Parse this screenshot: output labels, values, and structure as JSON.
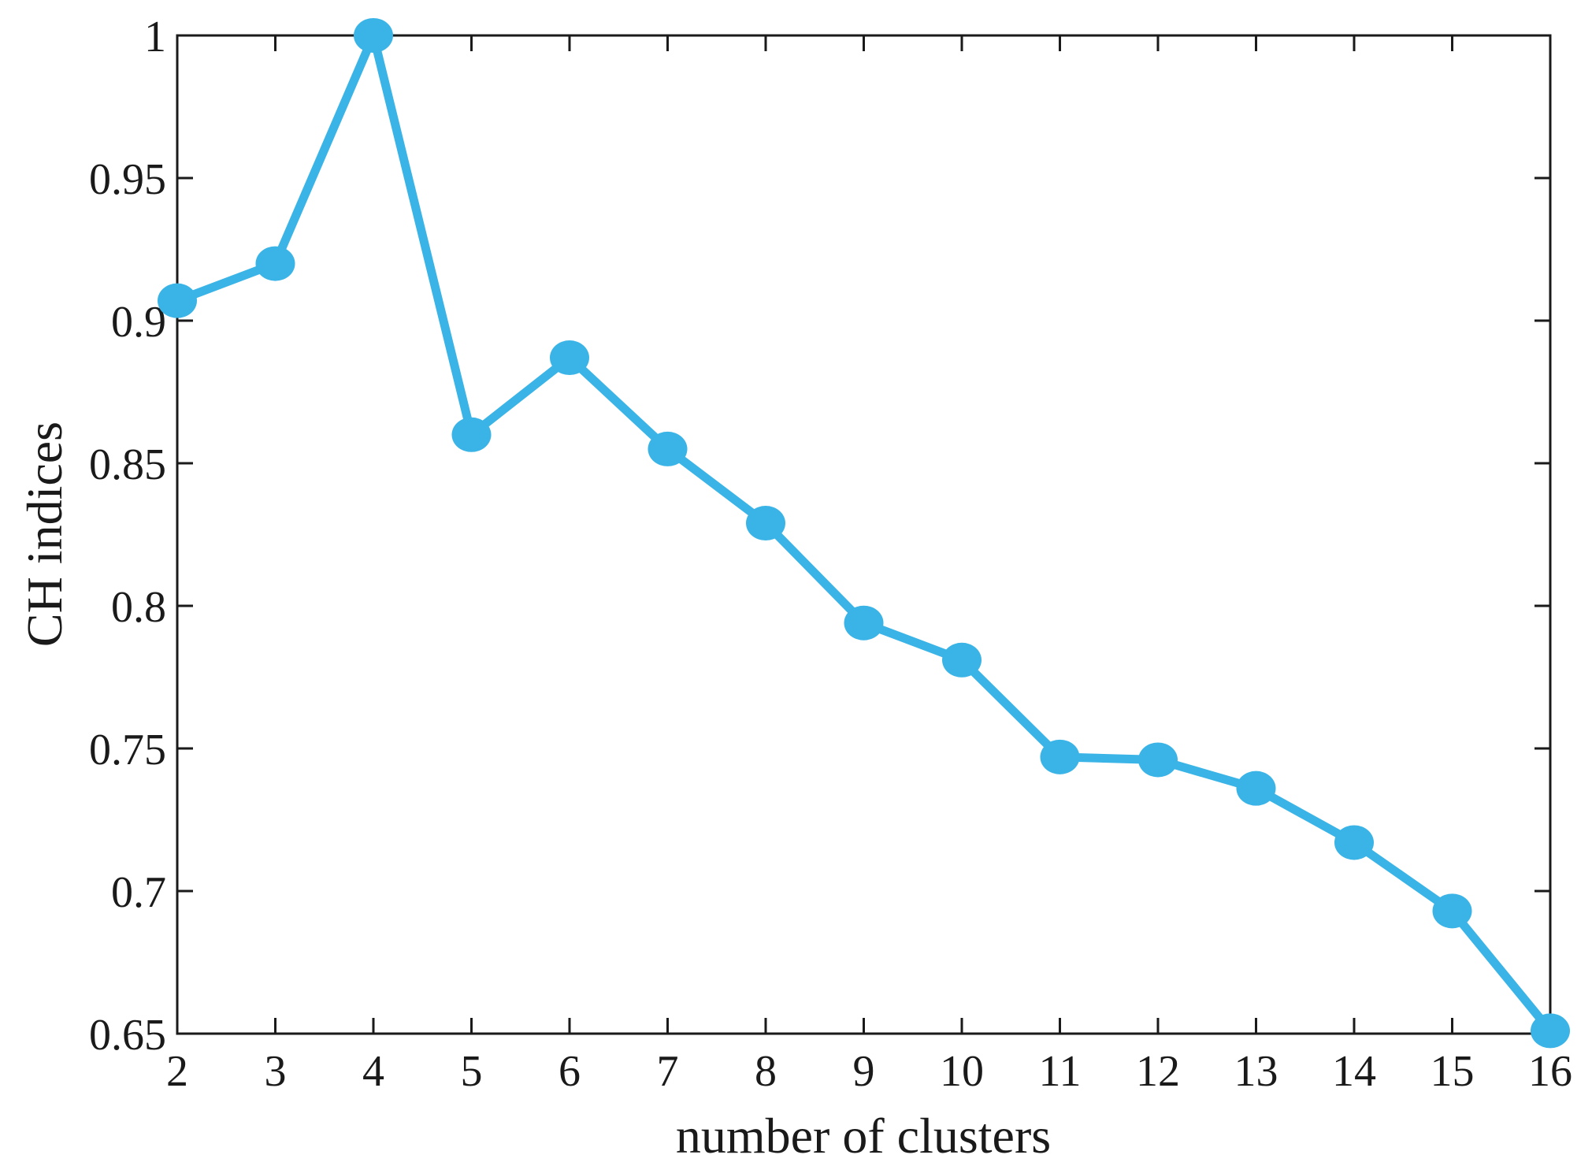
{
  "chart_data": {
    "type": "line",
    "title": "",
    "xlabel": "number of clusters",
    "ylabel": "CH indices",
    "x": [
      2,
      3,
      4,
      5,
      6,
      7,
      8,
      9,
      10,
      11,
      12,
      13,
      14,
      15,
      16
    ],
    "series": [
      {
        "values": [
          0.907,
          0.92,
          1.0,
          0.86,
          0.887,
          0.855,
          0.829,
          0.794,
          0.781,
          0.747,
          0.746,
          0.736,
          0.717,
          0.693,
          0.651
        ]
      }
    ],
    "xlim": [
      2,
      16
    ],
    "ylim": [
      0.65,
      1
    ],
    "xticks": [
      "2",
      "3",
      "4",
      "5",
      "6",
      "7",
      "8",
      "9",
      "10",
      "11",
      "12",
      "13",
      "14",
      "15",
      "16"
    ],
    "yticks": [
      "0.65",
      "0.7",
      "0.75",
      "0.8",
      "0.85",
      "0.9",
      "0.95",
      "1"
    ],
    "grid": false,
    "colors": {
      "series": "#3ab4e6",
      "axis": "#1a1a1a"
    }
  }
}
